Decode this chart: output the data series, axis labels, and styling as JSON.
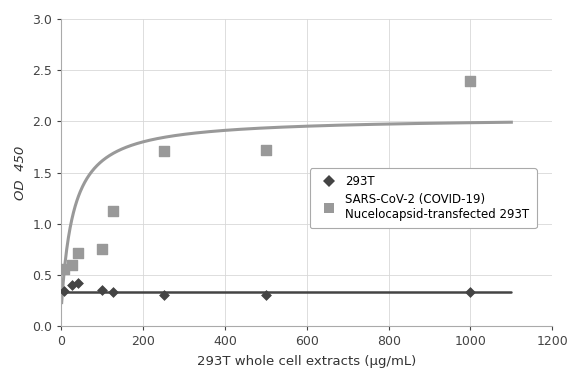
{
  "title": "",
  "xlabel": "293T whole cell extracts (μg/mL)",
  "ylabel": "OD  450",
  "xlim": [
    0,
    1200
  ],
  "ylim": [
    0,
    3
  ],
  "xticks": [
    0,
    200,
    400,
    600,
    800,
    1000,
    1200
  ],
  "yticks": [
    0,
    0.5,
    1,
    1.5,
    2,
    2.5,
    3
  ],
  "series_293T": {
    "scatter_x": [
      6,
      25,
      40,
      100,
      125,
      250,
      500,
      1000
    ],
    "scatter_y": [
      0.34,
      0.4,
      0.42,
      0.35,
      0.33,
      0.3,
      0.3,
      0.33
    ],
    "line_x": [
      0,
      1100
    ],
    "line_y": [
      0.33,
      0.33
    ],
    "color": "#444444",
    "marker": "D",
    "marker_size": 5,
    "label": "293T"
  },
  "series_covid": {
    "scatter_x": [
      6,
      25,
      40,
      100,
      125,
      250,
      500,
      1000
    ],
    "scatter_y": [
      0.56,
      0.6,
      0.71,
      0.75,
      1.12,
      1.71,
      1.72,
      2.39
    ],
    "color": "#999999",
    "marker": "s",
    "marker_size": 7,
    "label": "SARS-CoV-2 (COVID-19)\nNucelocapsid-transfected 293T"
  },
  "curve_params": {
    "Vmax": 1.84,
    "Km": 30,
    "baseline": 0.2
  },
  "bg_color": "#ffffff",
  "grid_color": "#d8d8d8",
  "curve_color": "#999999",
  "line_color": "#444444"
}
